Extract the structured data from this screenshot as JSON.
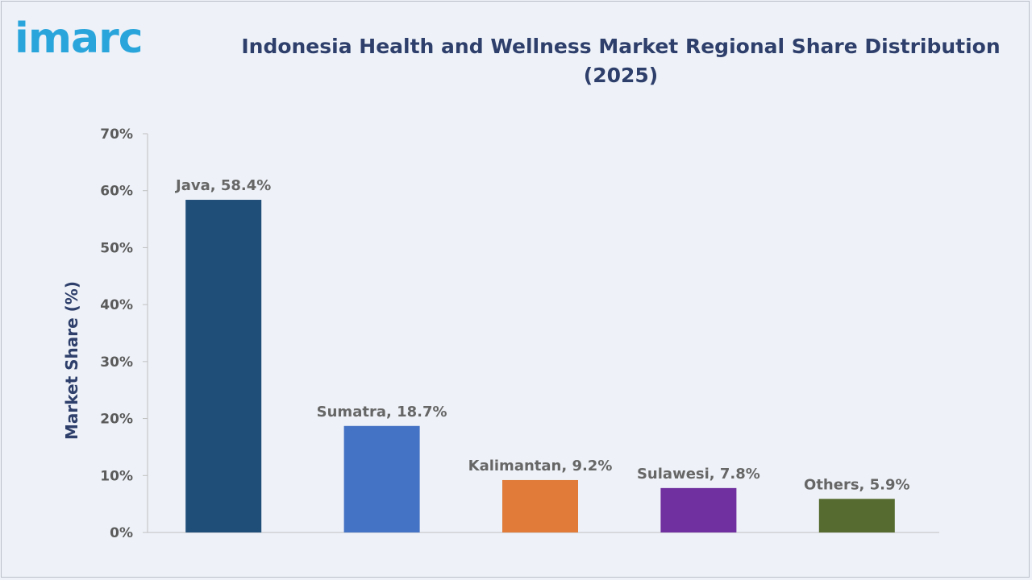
{
  "brand": {
    "logo_text": "imarc"
  },
  "chart_data": {
    "type": "bar",
    "title": "Indonesia Health and Wellness Market Regional Share Distribution",
    "subtitle": "(2025)",
    "xlabel": "",
    "ylabel": "Market Share (%)",
    "categories": [
      "Java",
      "Sumatra",
      "Kalimantan",
      "Sulawesi",
      "Others"
    ],
    "values": [
      58.4,
      18.7,
      9.2,
      7.8,
      5.9
    ],
    "data_labels": [
      "Java, 58.4%",
      "Sumatra, 18.7%",
      "Kalimantan, 9.2%",
      "Sulawesi, 7.8%",
      "Others, 5.9%"
    ],
    "colors": [
      "#1f4e79",
      "#4472c4",
      "#e07b39",
      "#7030a0",
      "#556b2f"
    ],
    "ylim": [
      0,
      70
    ],
    "yticks": [
      0,
      10,
      20,
      30,
      40,
      50,
      60,
      70
    ],
    "ytick_labels": [
      "0%",
      "10%",
      "20%",
      "30%",
      "40%",
      "50%",
      "60%",
      "70%"
    ],
    "grid": false,
    "legend": "none"
  }
}
